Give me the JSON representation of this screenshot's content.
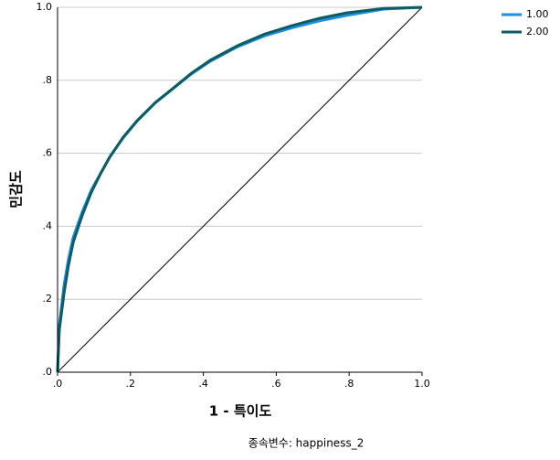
{
  "chart_data": {
    "type": "line",
    "x_label": "1 - 특이도",
    "y_label": "민감도",
    "footnote": "종속변수: happiness_2",
    "x": [
      0,
      0.005,
      0.018,
      0.03,
      0.043,
      0.068,
      0.093,
      0.118,
      0.143,
      0.18,
      0.218,
      0.268,
      0.318,
      0.368,
      0.419,
      0.494,
      0.569,
      0.644,
      0.719,
      0.794,
      0.895,
      1
    ],
    "series": [
      {
        "name": "1.00",
        "color": "#1e90e0",
        "values": [
          0,
          0.13,
          0.24,
          0.31,
          0.37,
          0.44,
          0.5,
          0.545,
          0.59,
          0.642,
          0.688,
          0.738,
          0.778,
          0.818,
          0.852,
          0.892,
          0.922,
          0.944,
          0.963,
          0.978,
          0.995,
          1
        ]
      },
      {
        "name": "2.00",
        "color": "#0d5c63",
        "values": [
          0,
          0.118,
          0.218,
          0.293,
          0.356,
          0.431,
          0.494,
          0.544,
          0.589,
          0.644,
          0.689,
          0.739,
          0.779,
          0.82,
          0.855,
          0.895,
          0.927,
          0.95,
          0.97,
          0.985,
          0.997,
          1
        ]
      }
    ],
    "xlim": [
      0,
      1
    ],
    "ylim": [
      0,
      1
    ],
    "xticks": [
      {
        "value": 0,
        "label": ".0"
      },
      {
        "value": 0.2,
        "label": ".2"
      },
      {
        "value": 0.4,
        "label": ".4"
      },
      {
        "value": 0.6,
        "label": ".6"
      },
      {
        "value": 0.8,
        "label": ".8"
      },
      {
        "value": 1,
        "label": "1.0"
      }
    ],
    "yticks": [
      {
        "value": 0,
        "label": ".0"
      },
      {
        "value": 0.2,
        "label": ".2"
      },
      {
        "value": 0.4,
        "label": ".4"
      },
      {
        "value": 0.6,
        "label": ".6"
      },
      {
        "value": 0.8,
        "label": ".8"
      },
      {
        "value": 1,
        "label": "1.0"
      }
    ],
    "grid": true,
    "legend": "top-right"
  }
}
